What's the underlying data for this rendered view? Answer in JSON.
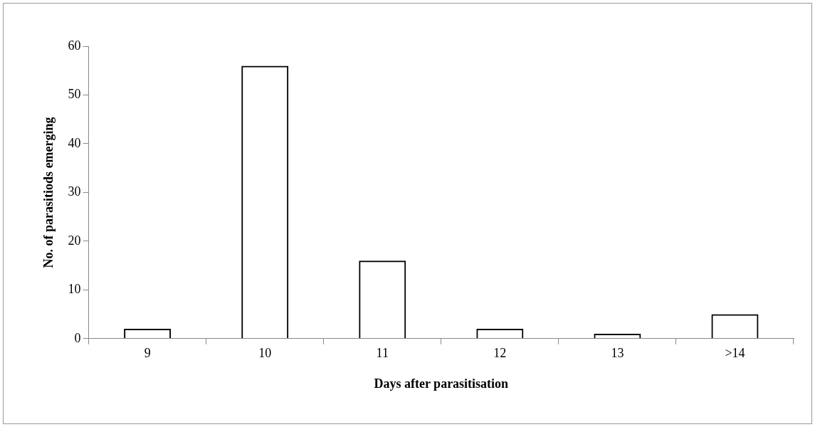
{
  "chart_data": {
    "type": "bar",
    "xlabel": "Days after parasitisation",
    "ylabel": "No. of parasitiods emerging",
    "categories": [
      "9",
      "10",
      "11",
      "12",
      "13",
      ">14"
    ],
    "series": [
      {
        "color": "#000000",
        "values": [
          2,
          56,
          16,
          2,
          1,
          5
        ]
      }
    ],
    "ylim": [
      0,
      60
    ],
    "yticks": [
      0,
      10,
      20,
      30,
      40,
      50,
      60
    ],
    "grid": false,
    "legend": false
  }
}
